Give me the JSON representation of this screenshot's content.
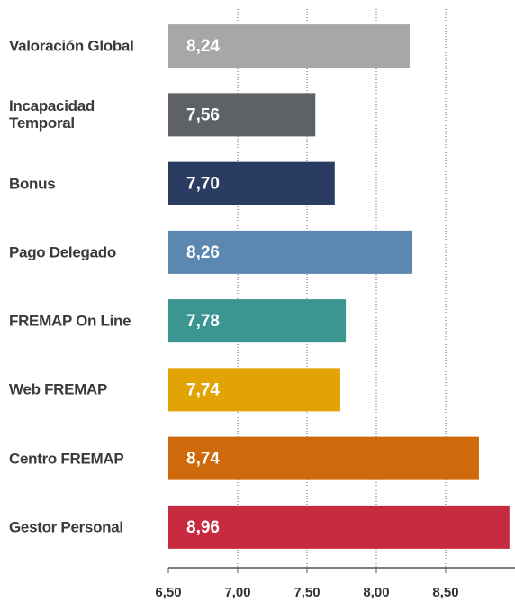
{
  "chart_data": {
    "type": "barh",
    "categories": [
      "Valoración Global",
      "Incapacidad Temporal",
      "Bonus",
      "Pago Delegado",
      "FREMAP On Line",
      "Web FREMAP",
      "Centro FREMAP",
      "Gestor Personal"
    ],
    "values": [
      8.24,
      7.56,
      7.7,
      8.26,
      7.78,
      7.74,
      8.74,
      8.96
    ],
    "value_labels": [
      "8,24",
      "7,56",
      "7,70",
      "8,26",
      "7,78",
      "7,74",
      "8,74",
      "8,96"
    ],
    "colors": [
      "#a5a7a9",
      "#5e6266",
      "#2b3c62",
      "#5b87b1",
      "#3b9590",
      "#e1a404",
      "#cf6a0c",
      "#c7293f"
    ],
    "xlim": [
      6.5,
      9.0
    ],
    "xticks": [
      {
        "value": 6.5,
        "label": "6,50"
      },
      {
        "value": 7.0,
        "label": "7,00"
      },
      {
        "value": 7.5,
        "label": "7,50"
      },
      {
        "value": 8.0,
        "label": "8,00"
      },
      {
        "value": 8.5,
        "label": "8,50"
      }
    ],
    "grid": true
  }
}
